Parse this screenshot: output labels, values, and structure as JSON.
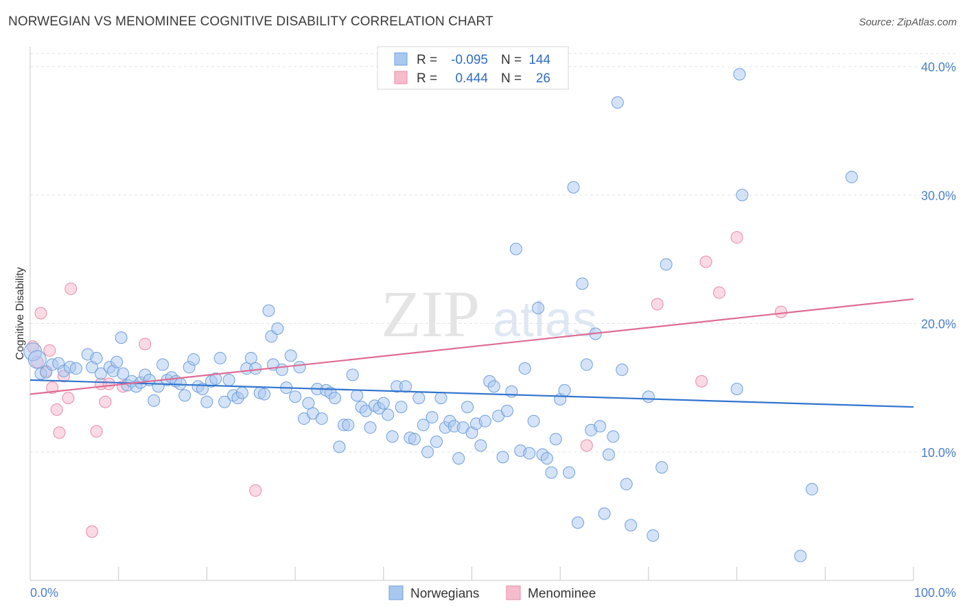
{
  "title": "NORWEGIAN VS MENOMINEE COGNITIVE DISABILITY CORRELATION CHART",
  "source": "Source: ZipAtlas.com",
  "watermark": {
    "zip": "ZIP",
    "atlas": "atlas"
  },
  "colors": {
    "blue_fill": "#a9c8ef",
    "blue_stroke": "#6f9fdc",
    "blue_line": "#2f74cf",
    "pink_fill": "#f6bccd",
    "pink_stroke": "#e88aa6",
    "pink_line": "#e06a94",
    "tick_text": "#4a7fc7",
    "grid": "#dde3ea"
  },
  "legend": {
    "items": [
      {
        "r_label": "R =",
        "r_value": "-0.095",
        "n_label": "N =",
        "n_value": "144"
      },
      {
        "r_label": "R =",
        "r_value": "0.444",
        "n_label": "N =",
        "n_value": "26"
      }
    ]
  },
  "bottom_legend": [
    "Norwegians",
    "Menominee"
  ],
  "chart_data": {
    "type": "scatter",
    "title": "NORWEGIAN VS MENOMINEE COGNITIVE DISABILITY CORRELATION CHART",
    "xlabel": "",
    "ylabel": "Cognitive Disability",
    "xlim": [
      0,
      100
    ],
    "ylim": [
      0,
      42
    ],
    "x_tick_labels": [
      "0.0%",
      "100.0%"
    ],
    "y_ticks": [
      10,
      20,
      30,
      40
    ],
    "y_tick_labels": [
      "10.0%",
      "20.0%",
      "30.0%",
      "40.0%"
    ],
    "grid": "horizontal dashed",
    "legend_placement": "top-center",
    "series": [
      {
        "name": "Norwegians",
        "r": -0.095,
        "n": 144,
        "trend": {
          "x": [
            0,
            100
          ],
          "y": [
            15.6,
            13.5
          ]
        },
        "points": [
          [
            0.3,
            17.8
          ],
          [
            0.8,
            17.2
          ],
          [
            1.2,
            16.1
          ],
          [
            1.8,
            16.2
          ],
          [
            2.5,
            16.8
          ],
          [
            3.2,
            16.9
          ],
          [
            3.8,
            16.3
          ],
          [
            4.5,
            16.6
          ],
          [
            5.2,
            16.5
          ],
          [
            6.5,
            17.6
          ],
          [
            7.0,
            16.6
          ],
          [
            7.5,
            17.3
          ],
          [
            8.0,
            16.1
          ],
          [
            9.0,
            16.6
          ],
          [
            9.4,
            16.3
          ],
          [
            9.8,
            17.0
          ],
          [
            10.3,
            18.9
          ],
          [
            10.5,
            16.1
          ],
          [
            11.0,
            15.2
          ],
          [
            11.5,
            15.5
          ],
          [
            12.0,
            15.1
          ],
          [
            12.5,
            15.4
          ],
          [
            13.0,
            16.0
          ],
          [
            13.5,
            15.6
          ],
          [
            14.0,
            14.0
          ],
          [
            14.5,
            15.1
          ],
          [
            15.0,
            16.8
          ],
          [
            15.5,
            15.6
          ],
          [
            16.0,
            15.8
          ],
          [
            16.5,
            15.5
          ],
          [
            17.0,
            15.3
          ],
          [
            17.5,
            14.4
          ],
          [
            18.0,
            16.6
          ],
          [
            18.5,
            17.2
          ],
          [
            19.0,
            15.1
          ],
          [
            19.5,
            14.9
          ],
          [
            20.0,
            13.9
          ],
          [
            20.5,
            15.5
          ],
          [
            21.0,
            15.7
          ],
          [
            21.5,
            17.3
          ],
          [
            22.0,
            13.9
          ],
          [
            22.5,
            15.6
          ],
          [
            23.0,
            14.4
          ],
          [
            23.5,
            14.2
          ],
          [
            24.0,
            14.6
          ],
          [
            24.5,
            16.5
          ],
          [
            25.0,
            17.3
          ],
          [
            25.5,
            16.5
          ],
          [
            26.0,
            14.6
          ],
          [
            26.5,
            14.5
          ],
          [
            27.0,
            21.0
          ],
          [
            27.3,
            19.0
          ],
          [
            27.5,
            16.8
          ],
          [
            28.0,
            19.6
          ],
          [
            28.5,
            16.4
          ],
          [
            29.0,
            15.0
          ],
          [
            29.5,
            17.5
          ],
          [
            30.0,
            14.3
          ],
          [
            30.5,
            16.6
          ],
          [
            31.0,
            12.6
          ],
          [
            31.5,
            13.8
          ],
          [
            32.0,
            13.0
          ],
          [
            32.5,
            14.9
          ],
          [
            33.0,
            12.6
          ],
          [
            33.5,
            14.8
          ],
          [
            34.0,
            14.6
          ],
          [
            34.5,
            14.2
          ],
          [
            35.0,
            10.4
          ],
          [
            35.5,
            12.1
          ],
          [
            36.0,
            12.1
          ],
          [
            36.5,
            16.0
          ],
          [
            37.0,
            14.4
          ],
          [
            37.5,
            13.5
          ],
          [
            38.0,
            13.2
          ],
          [
            38.5,
            11.9
          ],
          [
            39.0,
            13.6
          ],
          [
            39.5,
            13.4
          ],
          [
            40.0,
            13.8
          ],
          [
            40.5,
            12.9
          ],
          [
            41.0,
            11.2
          ],
          [
            41.5,
            15.1
          ],
          [
            42.0,
            13.5
          ],
          [
            42.5,
            15.1
          ],
          [
            43.0,
            11.1
          ],
          [
            43.5,
            11.0
          ],
          [
            44.0,
            14.2
          ],
          [
            44.5,
            12.1
          ],
          [
            45.0,
            10.0
          ],
          [
            45.5,
            12.7
          ],
          [
            46.0,
            10.8
          ],
          [
            46.5,
            14.2
          ],
          [
            47.0,
            11.9
          ],
          [
            47.5,
            12.4
          ],
          [
            48.0,
            12.0
          ],
          [
            48.5,
            9.5
          ],
          [
            49.0,
            11.9
          ],
          [
            49.5,
            13.5
          ],
          [
            50.0,
            11.5
          ],
          [
            50.5,
            12.2
          ],
          [
            51.0,
            10.5
          ],
          [
            51.5,
            12.4
          ],
          [
            52.0,
            15.5
          ],
          [
            52.5,
            15.1
          ],
          [
            53.0,
            12.8
          ],
          [
            53.5,
            9.6
          ],
          [
            54.0,
            13.2
          ],
          [
            54.5,
            14.7
          ],
          [
            55.0,
            25.8
          ],
          [
            55.5,
            10.1
          ],
          [
            56.0,
            16.5
          ],
          [
            56.5,
            9.9
          ],
          [
            57.0,
            12.4
          ],
          [
            57.5,
            21.2
          ],
          [
            58.0,
            9.8
          ],
          [
            58.5,
            9.5
          ],
          [
            59.0,
            8.4
          ],
          [
            59.5,
            11.0
          ],
          [
            60.0,
            14.1
          ],
          [
            60.5,
            14.8
          ],
          [
            61.0,
            8.4
          ],
          [
            61.5,
            30.6
          ],
          [
            62.0,
            4.5
          ],
          [
            62.5,
            23.1
          ],
          [
            63.0,
            16.8
          ],
          [
            63.5,
            11.7
          ],
          [
            64.0,
            19.2
          ],
          [
            64.5,
            12.0
          ],
          [
            65.0,
            5.2
          ],
          [
            65.5,
            9.8
          ],
          [
            66.0,
            11.2
          ],
          [
            66.5,
            37.2
          ],
          [
            67.0,
            16.4
          ],
          [
            67.5,
            7.5
          ],
          [
            68.0,
            4.3
          ],
          [
            70.0,
            14.3
          ],
          [
            70.5,
            3.5
          ],
          [
            71.5,
            8.8
          ],
          [
            72.0,
            24.6
          ],
          [
            80.3,
            39.4
          ],
          [
            80.6,
            30.0
          ],
          [
            87.2,
            1.9
          ],
          [
            88.5,
            7.1
          ],
          [
            93.0,
            31.4
          ],
          [
            80.0,
            14.9
          ]
        ]
      },
      {
        "name": "Menominee",
        "r": 0.444,
        "n": 26,
        "trend": {
          "x": [
            0,
            100
          ],
          "y": [
            14.5,
            21.9
          ]
        },
        "points": [
          [
            0.3,
            18.2
          ],
          [
            0.8,
            17.0
          ],
          [
            1.2,
            20.8
          ],
          [
            1.8,
            16.3
          ],
          [
            2.2,
            17.9
          ],
          [
            2.5,
            15.0
          ],
          [
            3.0,
            13.3
          ],
          [
            3.3,
            11.5
          ],
          [
            3.8,
            15.9
          ],
          [
            4.3,
            14.2
          ],
          [
            4.6,
            22.7
          ],
          [
            7.0,
            3.8
          ],
          [
            7.5,
            11.6
          ],
          [
            8.0,
            15.3
          ],
          [
            8.5,
            13.9
          ],
          [
            8.9,
            15.3
          ],
          [
            10.5,
            15.1
          ],
          [
            13.0,
            18.4
          ],
          [
            25.5,
            7.0
          ],
          [
            63.0,
            10.5
          ],
          [
            71.0,
            21.5
          ],
          [
            76.0,
            15.5
          ],
          [
            76.5,
            24.8
          ],
          [
            78.0,
            22.4
          ],
          [
            80.0,
            26.7
          ],
          [
            85.0,
            20.9
          ]
        ]
      }
    ]
  }
}
